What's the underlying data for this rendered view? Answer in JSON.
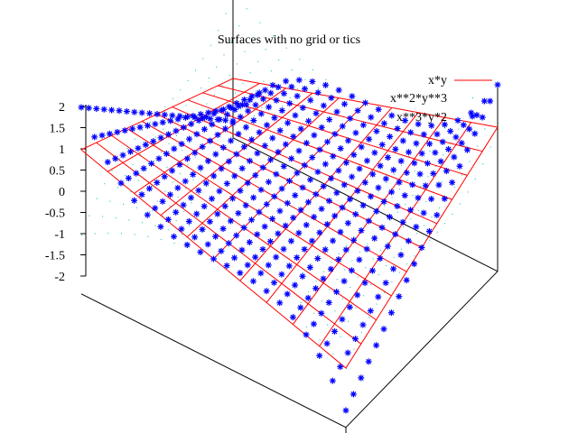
{
  "chart_data": {
    "type": "surface3d",
    "title": "Surfaces with no grid or tics",
    "grid": false,
    "xlim": [
      -1,
      1
    ],
    "ylim": [
      -1,
      1
    ],
    "zlim": [
      -2,
      2
    ],
    "z_ticks": [
      "2",
      "1.5",
      "1",
      "0.5",
      "0",
      "-0.5",
      "-1",
      "-1.5",
      "-2"
    ],
    "z_tick_values": [
      2,
      1.5,
      1,
      0.5,
      0,
      -0.5,
      -1,
      -1.5,
      -2
    ],
    "samples": 11,
    "isosamples": 11,
    "legend_position": "top-right",
    "series": [
      {
        "name": "x*y",
        "function": "x*y",
        "style": "lines",
        "color": "#ff0000"
      },
      {
        "name": "x**2*y**3",
        "function": "x**2*y**3",
        "style": "dots",
        "color": "#00c0a0"
      },
      {
        "name": "x**3*y*2",
        "function": "x**3*y*2",
        "style": "points",
        "color": "#0000ff"
      }
    ]
  }
}
